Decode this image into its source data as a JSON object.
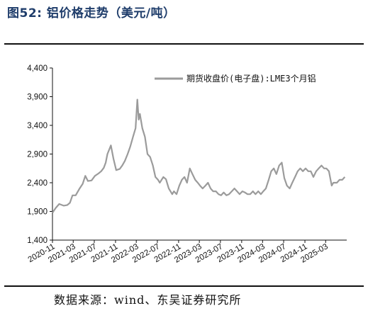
{
  "figure": {
    "title": "图52:  铝价格走势（美元/吨）",
    "source": "数据来源：wind、东吴证券研究所"
  },
  "chart_data": {
    "type": "line",
    "title": "",
    "xlabel": "",
    "ylabel": "",
    "ylim": [
      1400,
      4400
    ],
    "yticks": [
      "1,400",
      "1,900",
      "2,400",
      "2,900",
      "3,400",
      "3,900",
      "4,400"
    ],
    "xlim": [
      "2020-11-01",
      "2025-07-01"
    ],
    "xticks": [
      "2020-11",
      "2021-03",
      "2021-07",
      "2021-11",
      "2022-03",
      "2022-07",
      "2022-11",
      "2023-03",
      "2023-07",
      "2023-11",
      "2024-03",
      "2024-07",
      "2024-11",
      "2025-03"
    ],
    "grid": false,
    "legend_position": "top-right",
    "colors": {
      "line": "#9b9b9b",
      "axis": "#111111"
    },
    "series": [
      {
        "name": "期货收盘价(电子盘):LME3个月铝",
        "x": [
          "2020-11-02",
          "2020-11-20",
          "2020-12-10",
          "2021-01-05",
          "2021-01-25",
          "2021-02-10",
          "2021-02-25",
          "2021-03-15",
          "2021-04-05",
          "2021-04-25",
          "2021-05-10",
          "2021-05-25",
          "2021-06-15",
          "2021-07-05",
          "2021-07-25",
          "2021-08-10",
          "2021-08-25",
          "2021-09-05",
          "2021-09-15",
          "2021-10-05",
          "2021-10-20",
          "2021-11-05",
          "2021-11-25",
          "2021-12-10",
          "2021-12-25",
          "2022-01-10",
          "2022-01-25",
          "2022-02-10",
          "2022-02-25",
          "2022-03-07",
          "2022-03-15",
          "2022-03-22",
          "2022-04-05",
          "2022-04-20",
          "2022-05-05",
          "2022-05-20",
          "2022-06-05",
          "2022-06-20",
          "2022-07-05",
          "2022-07-15",
          "2022-08-05",
          "2022-08-20",
          "2022-09-05",
          "2022-09-25",
          "2022-10-05",
          "2022-10-20",
          "2022-11-05",
          "2022-11-20",
          "2022-12-05",
          "2022-12-20",
          "2023-01-05",
          "2023-01-20",
          "2023-02-05",
          "2023-02-20",
          "2023-03-05",
          "2023-03-20",
          "2023-04-05",
          "2023-04-20",
          "2023-05-05",
          "2023-05-20",
          "2023-06-05",
          "2023-06-20",
          "2023-07-05",
          "2023-07-20",
          "2023-08-05",
          "2023-08-20",
          "2023-09-05",
          "2023-09-20",
          "2023-10-05",
          "2023-10-20",
          "2023-11-05",
          "2023-11-20",
          "2023-12-05",
          "2023-12-20",
          "2024-01-05",
          "2024-01-20",
          "2024-02-05",
          "2024-02-20",
          "2024-03-05",
          "2024-03-20",
          "2024-04-05",
          "2024-04-20",
          "2024-05-05",
          "2024-05-20",
          "2024-06-05",
          "2024-06-20",
          "2024-07-05",
          "2024-07-20",
          "2024-08-05",
          "2024-08-20",
          "2024-09-05",
          "2024-09-20",
          "2024-10-05",
          "2024-10-20",
          "2024-11-05",
          "2024-11-20",
          "2024-12-05",
          "2024-12-20",
          "2025-01-05",
          "2025-01-20",
          "2025-02-05",
          "2025-02-20",
          "2025-03-05",
          "2025-03-20",
          "2025-04-05",
          "2025-04-15",
          "2025-05-05",
          "2025-05-20",
          "2025-06-05",
          "2025-06-20"
        ],
        "values": [
          1880,
          1960,
          2030,
          2000,
          2010,
          2050,
          2180,
          2180,
          2290,
          2380,
          2520,
          2430,
          2440,
          2520,
          2560,
          2600,
          2660,
          2750,
          2900,
          3050,
          2820,
          2620,
          2640,
          2700,
          2780,
          2900,
          3030,
          3200,
          3350,
          3850,
          3500,
          3600,
          3350,
          3200,
          2900,
          2850,
          2700,
          2500,
          2450,
          2400,
          2500,
          2460,
          2300,
          2200,
          2250,
          2200,
          2350,
          2450,
          2500,
          2400,
          2650,
          2550,
          2450,
          2400,
          2350,
          2300,
          2350,
          2400,
          2300,
          2250,
          2250,
          2200,
          2180,
          2230,
          2180,
          2200,
          2250,
          2300,
          2250,
          2200,
          2250,
          2230,
          2200,
          2200,
          2250,
          2200,
          2250,
          2200,
          2250,
          2300,
          2450,
          2600,
          2650,
          2550,
          2700,
          2750,
          2480,
          2350,
          2300,
          2400,
          2500,
          2600,
          2650,
          2600,
          2650,
          2600,
          2600,
          2500,
          2600,
          2650,
          2700,
          2650,
          2650,
          2600,
          2350,
          2400,
          2400,
          2450,
          2450,
          2500
        ]
      }
    ]
  }
}
